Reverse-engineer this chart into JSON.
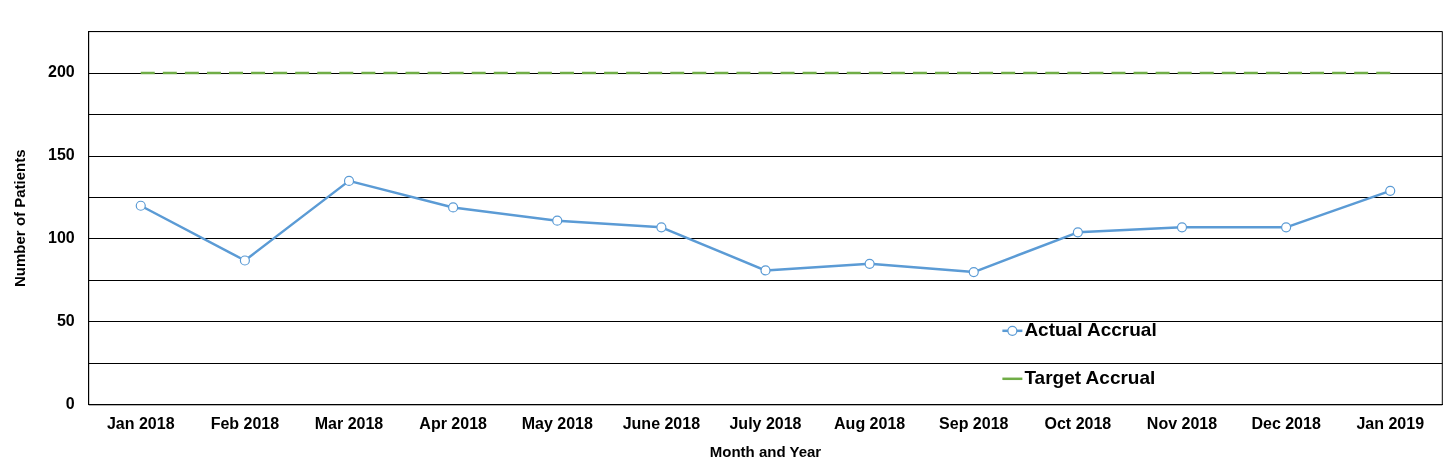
{
  "chart_data": {
    "type": "line",
    "xlabel": "Month and Year",
    "ylabel": "Number of Patients",
    "categories": [
      "Jan 2018",
      "Feb 2018",
      "Mar 2018",
      "Apr 2018",
      "May 2018",
      "June 2018",
      "July 2018",
      "Aug 2018",
      "Sep 2018",
      "Oct 2018",
      "Nov 2018",
      "Dec 2018",
      "Jan 2019"
    ],
    "series": [
      {
        "name": "Actual Accrual",
        "color": "#5b9bd5",
        "marker": "circle",
        "line_style": "solid",
        "values": [
          120,
          87,
          135,
          119,
          111,
          107,
          81,
          85,
          80,
          104,
          107,
          107,
          129
        ]
      },
      {
        "name": "Target Accrual",
        "color": "#70ad47",
        "marker": "none",
        "line_style": "dashed",
        "values": [
          200,
          200,
          200,
          200,
          200,
          200,
          200,
          200,
          200,
          200,
          200,
          200,
          200
        ]
      }
    ],
    "ylim": [
      0,
      225
    ],
    "yticks": [
      0,
      {
        "value": 25,
        "label": null
      },
      50,
      {
        "value": 75,
        "label": null
      },
      100,
      {
        "value": 125,
        "label": null
      },
      150,
      {
        "value": 175,
        "label": null
      },
      200,
      {
        "value": 225,
        "label": null
      }
    ],
    "grid": "y",
    "legend": "bottom right"
  }
}
